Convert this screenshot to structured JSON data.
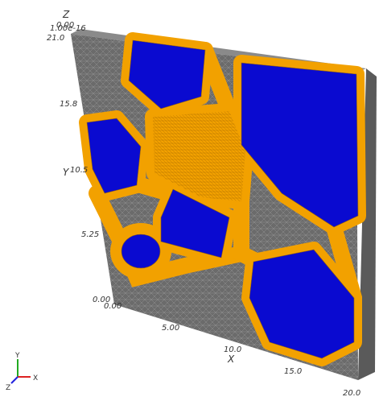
{
  "axes": {
    "z": {
      "title": "Z",
      "ticks": [
        "1.00e-16",
        "0.00"
      ]
    },
    "y": {
      "title": "Y",
      "ticks": [
        "21.0",
        "15.8",
        "10.5",
        "5.25",
        "0.00"
      ]
    },
    "x": {
      "title": "X",
      "ticks": [
        "0.00",
        "5.00",
        "10.0",
        "15.0",
        "20.0"
      ]
    }
  },
  "orientation_axes": {
    "y": "Y",
    "x": "X",
    "z": "Z"
  }
}
